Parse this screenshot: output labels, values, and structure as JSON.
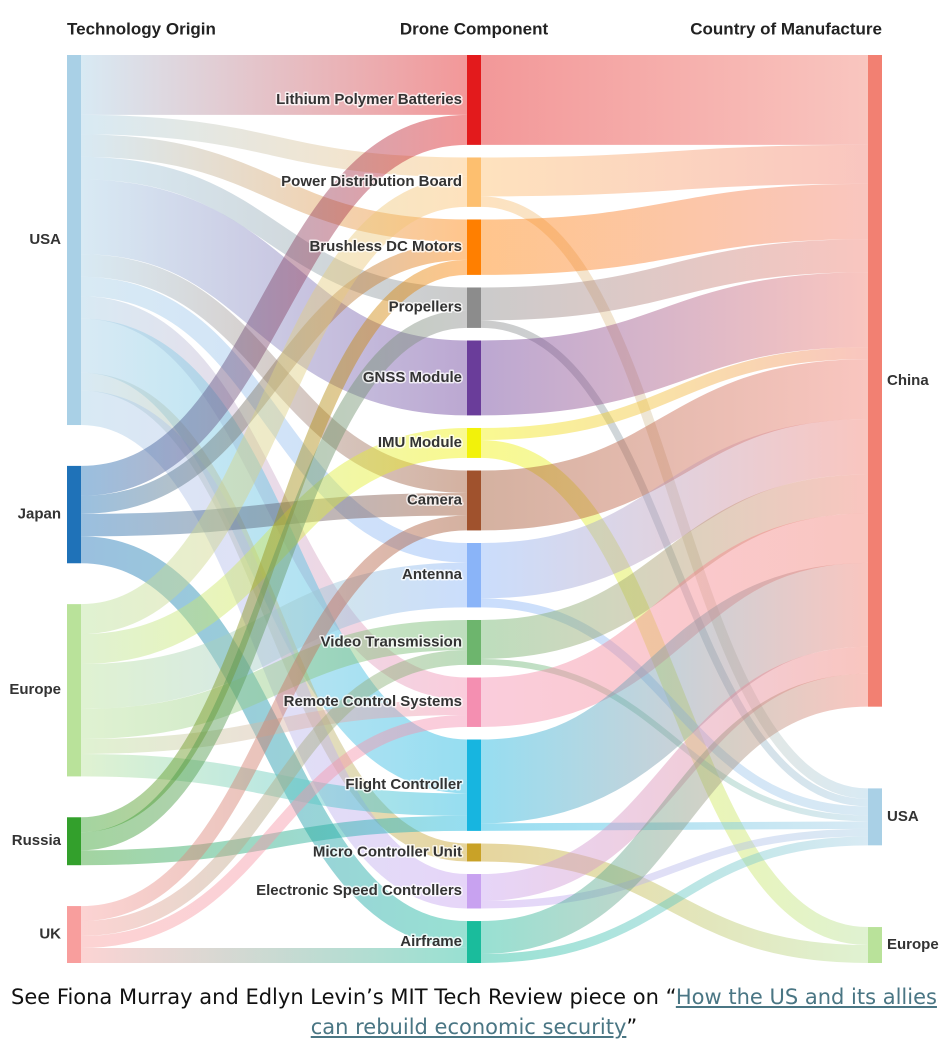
{
  "chart_data": {
    "type": "sankey",
    "columns": [
      "Technology Origin",
      "Drone Component",
      "Country of Manufacture"
    ],
    "origins": [
      {
        "name": "USA",
        "color": "#a9d0e6"
      },
      {
        "name": "Japan",
        "color": "#1f72b8"
      },
      {
        "name": "Europe",
        "color": "#b9e29a"
      },
      {
        "name": "Russia",
        "color": "#33a02c"
      },
      {
        "name": "UK",
        "color": "#f89e9d"
      }
    ],
    "components": [
      {
        "name": "Lithium Polymer Batteries",
        "color": "#e31a1c"
      },
      {
        "name": "Power Distribution Board",
        "color": "#fdbf6f"
      },
      {
        "name": "Brushless DC Motors",
        "color": "#ff7f00"
      },
      {
        "name": "Propellers",
        "color": "#8c8c8c"
      },
      {
        "name": "GNSS Module",
        "color": "#6a3d9a"
      },
      {
        "name": "IMU Module",
        "color": "#f2f20a"
      },
      {
        "name": "Camera",
        "color": "#a0522d"
      },
      {
        "name": "Antenna",
        "color": "#8ab4f8"
      },
      {
        "name": "Video Transmission",
        "color": "#6db56d"
      },
      {
        "name": "Remote Control Systems",
        "color": "#f48fb1"
      },
      {
        "name": "Flight Controller",
        "color": "#17b5e0"
      },
      {
        "name": "Micro Controller Unit",
        "color": "#c9a227"
      },
      {
        "name": "Electronic Speed Controllers",
        "color": "#c8a2f0"
      },
      {
        "name": "Airframe",
        "color": "#1abc9c"
      }
    ],
    "destinations": [
      {
        "name": "China",
        "color": "#f28072"
      },
      {
        "name": "USA",
        "color": "#a9d0e6"
      },
      {
        "name": "Europe",
        "color": "#b9e29a"
      }
    ],
    "flows_origin_to_component": [
      {
        "source": "USA",
        "target": "Lithium Polymer Batteries",
        "value": 4
      },
      {
        "source": "USA",
        "target": "Power Distribution Board",
        "value": 1.3
      },
      {
        "source": "USA",
        "target": "Brushless DC Motors",
        "value": 1.5
      },
      {
        "source": "USA",
        "target": "Propellers",
        "value": 1.5
      },
      {
        "source": "USA",
        "target": "GNSS Module",
        "value": 5
      },
      {
        "source": "USA",
        "target": "Camera",
        "value": 1.5
      },
      {
        "source": "USA",
        "target": "Remote Control Systems",
        "value": 1.5
      },
      {
        "source": "USA",
        "target": "Flight Controller",
        "value": 3.6
      },
      {
        "source": "USA",
        "target": "Micro Controller Unit",
        "value": 1.2
      },
      {
        "source": "USA",
        "target": "Electronic Speed Controllers",
        "value": 2.3
      },
      {
        "source": "USA",
        "target": "Antenna",
        "value": 1.3
      },
      {
        "source": "Japan",
        "target": "Lithium Polymer Batteries",
        "value": 2
      },
      {
        "source": "Japan",
        "target": "Brushless DC Motors",
        "value": 1.2
      },
      {
        "source": "Japan",
        "target": "Camera",
        "value": 1.5
      },
      {
        "source": "Japan",
        "target": "Airframe",
        "value": 1.8
      },
      {
        "source": "Europe",
        "target": "Power Distribution Board",
        "value": 2
      },
      {
        "source": "Europe",
        "target": "IMU Module",
        "value": 2
      },
      {
        "source": "Europe",
        "target": "Antenna",
        "value": 3
      },
      {
        "source": "Europe",
        "target": "Video Transmission",
        "value": 2
      },
      {
        "source": "Europe",
        "target": "Remote Control Systems",
        "value": 1
      },
      {
        "source": "Europe",
        "target": "Flight Controller",
        "value": 1.5
      },
      {
        "source": "Russia",
        "target": "Brushless DC Motors",
        "value": 1
      },
      {
        "source": "Russia",
        "target": "Propellers",
        "value": 1.2
      },
      {
        "source": "Russia",
        "target": "Flight Controller",
        "value": 1
      },
      {
        "source": "UK",
        "target": "Camera",
        "value": 1
      },
      {
        "source": "UK",
        "target": "Video Transmission",
        "value": 1
      },
      {
        "source": "UK",
        "target": "Remote Control Systems",
        "value": 0.8
      },
      {
        "source": "UK",
        "target": "Airframe",
        "value": 1
      }
    ],
    "flows_component_to_destination": [
      {
        "source": "Lithium Polymer Batteries",
        "target": "China",
        "value": 6
      },
      {
        "source": "Power Distribution Board",
        "target": "China",
        "value": 2.6
      },
      {
        "source": "Power Distribution Board",
        "target": "USA",
        "value": 0.7
      },
      {
        "source": "Brushless DC Motors",
        "target": "China",
        "value": 3.7
      },
      {
        "source": "Propellers",
        "target": "China",
        "value": 2.2
      },
      {
        "source": "Propellers",
        "target": "USA",
        "value": 0.5
      },
      {
        "source": "GNSS Module",
        "target": "China",
        "value": 5
      },
      {
        "source": "IMU Module",
        "target": "China",
        "value": 0.8
      },
      {
        "source": "IMU Module",
        "target": "Europe",
        "value": 1.2
      },
      {
        "source": "Camera",
        "target": "China",
        "value": 4
      },
      {
        "source": "Antenna",
        "target": "China",
        "value": 3.7
      },
      {
        "source": "Antenna",
        "target": "USA",
        "value": 0.6
      },
      {
        "source": "Video Transmission",
        "target": "China",
        "value": 2.6
      },
      {
        "source": "Video Transmission",
        "target": "USA",
        "value": 0.4
      },
      {
        "source": "Remote Control Systems",
        "target": "China",
        "value": 3.3
      },
      {
        "source": "Flight Controller",
        "target": "China",
        "value": 5.6
      },
      {
        "source": "Flight Controller",
        "target": "USA",
        "value": 0.5
      },
      {
        "source": "Micro Controller Unit",
        "target": "Europe",
        "value": 1.2
      },
      {
        "source": "Electronic Speed Controllers",
        "target": "China",
        "value": 1.8
      },
      {
        "source": "Electronic Speed Controllers",
        "target": "USA",
        "value": 0.5
      },
      {
        "source": "Airframe",
        "target": "China",
        "value": 2.2
      },
      {
        "source": "Airframe",
        "target": "USA",
        "value": 0.6
      }
    ]
  },
  "caption": {
    "prefix": "See Fiona Murray and Edlyn Levin’s MIT Tech Review piece on “",
    "link_text": "How the US and its allies can rebuild economic security",
    "suffix": "”"
  }
}
